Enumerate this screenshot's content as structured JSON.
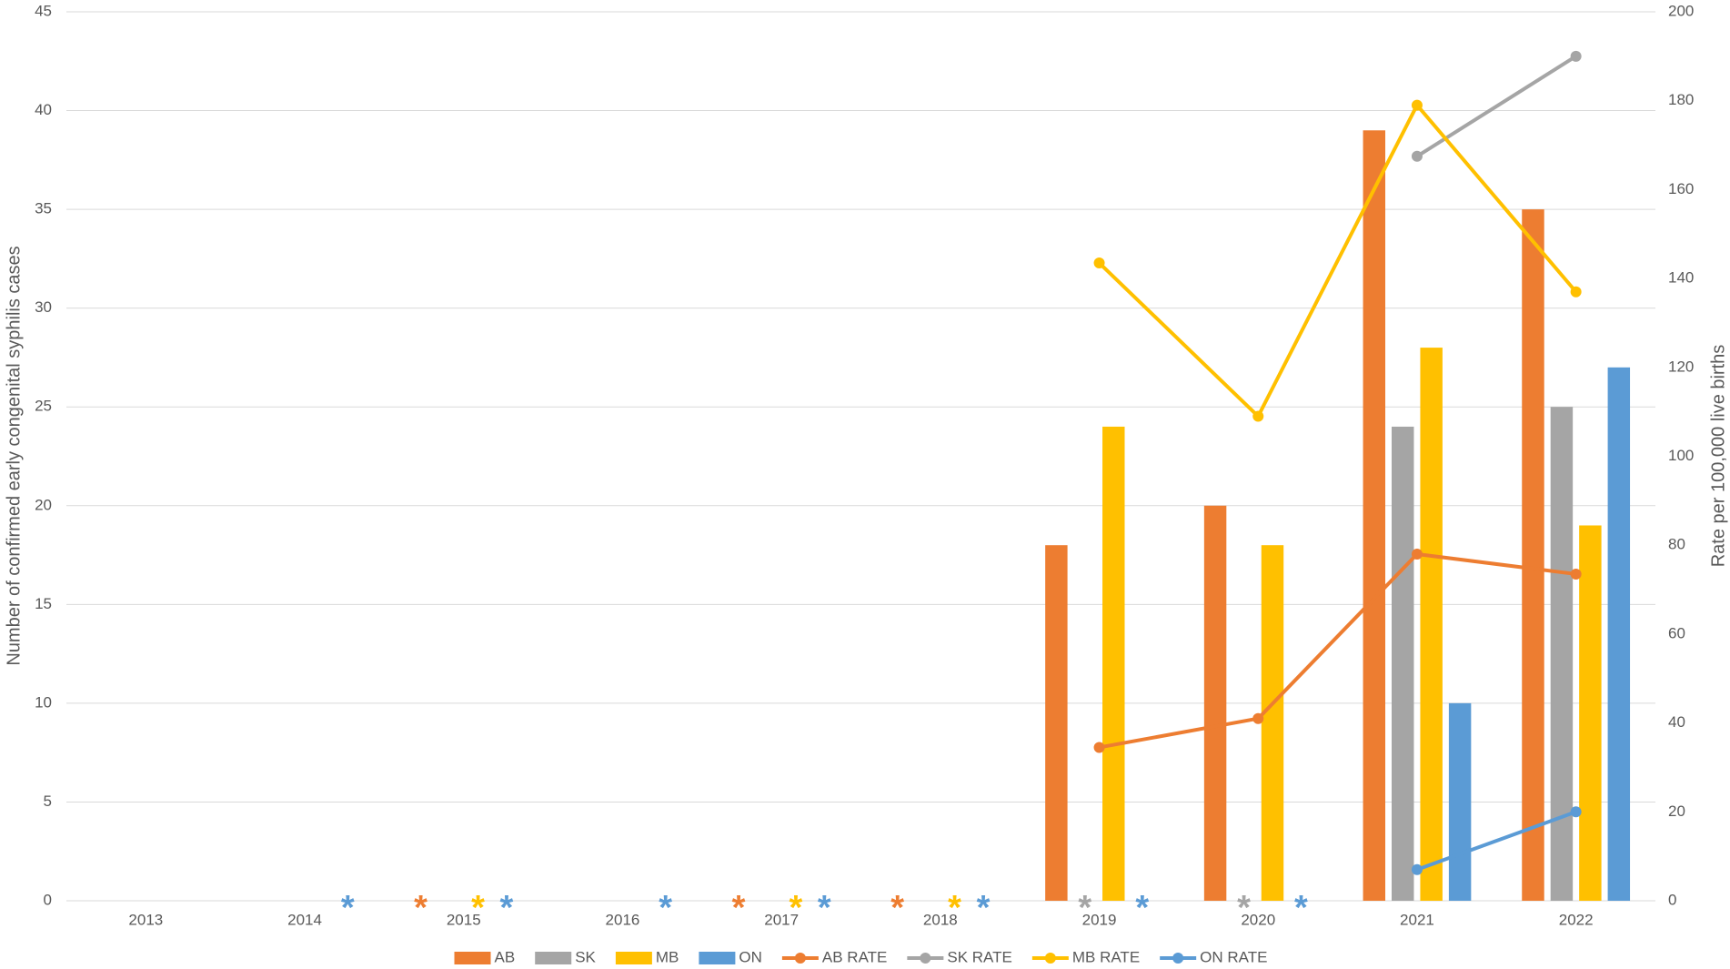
{
  "chart_data": {
    "type": "bar",
    "y_label": "Number of confirmed early congenital syphilis cases",
    "y2_label": "Rate per 100,000 live births",
    "categories": [
      "2013",
      "2014",
      "2015",
      "2016",
      "2017",
      "2018",
      "2019",
      "2020",
      "2021",
      "2022"
    ],
    "ylim": [
      0,
      45
    ],
    "yticks": [
      0,
      5,
      10,
      15,
      20,
      25,
      30,
      35,
      40,
      45
    ],
    "y2lim": [
      0,
      200
    ],
    "y2ticks": [
      0,
      20,
      40,
      60,
      80,
      100,
      120,
      140,
      160,
      180,
      200
    ],
    "grid": true,
    "legend": "bottom",
    "series": [
      {
        "name": "AB",
        "type": "bar",
        "color": "#ED7D31",
        "values": [
          null,
          null,
          null,
          null,
          null,
          null,
          18,
          20,
          39,
          35
        ],
        "value_labels": [
          null,
          null,
          "*",
          null,
          "*",
          "*",
          null,
          null,
          null,
          null
        ]
      },
      {
        "name": "SK",
        "type": "bar",
        "color": "#A5A5A5",
        "values": [
          null,
          null,
          null,
          null,
          null,
          null,
          null,
          null,
          24,
          25
        ],
        "value_labels": [
          null,
          null,
          null,
          null,
          null,
          null,
          "*",
          "*",
          null,
          null
        ]
      },
      {
        "name": "MB",
        "type": "bar",
        "color": "#FFC000",
        "values": [
          null,
          null,
          null,
          null,
          null,
          null,
          24,
          18,
          28,
          19
        ],
        "value_labels": [
          null,
          null,
          "*",
          null,
          "*",
          "*",
          null,
          null,
          null,
          null
        ]
      },
      {
        "name": "ON",
        "type": "bar",
        "color": "#5B9BD5",
        "values": [
          null,
          null,
          null,
          null,
          null,
          null,
          null,
          null,
          10,
          27
        ],
        "value_labels": [
          null,
          "*",
          "*",
          "*",
          "*",
          "*",
          "*",
          "*",
          null,
          null
        ]
      },
      {
        "name": "AB RATE",
        "type": "line",
        "axis": "y2",
        "color": "#ED7D31",
        "values": [
          null,
          null,
          null,
          null,
          null,
          null,
          34.5,
          41,
          78,
          73.5
        ]
      },
      {
        "name": "SK RATE",
        "type": "line",
        "axis": "y2",
        "color": "#A5A5A5",
        "values": [
          null,
          null,
          null,
          null,
          null,
          null,
          null,
          null,
          167.5,
          190
        ]
      },
      {
        "name": "MB RATE",
        "type": "line",
        "axis": "y2",
        "color": "#FFC000",
        "values": [
          null,
          null,
          null,
          null,
          null,
          null,
          143.5,
          109,
          179,
          137
        ]
      },
      {
        "name": "ON RATE",
        "type": "line",
        "axis": "y2",
        "color": "#5B9BD5",
        "values": [
          null,
          null,
          null,
          null,
          null,
          null,
          null,
          null,
          7,
          20
        ]
      }
    ]
  }
}
